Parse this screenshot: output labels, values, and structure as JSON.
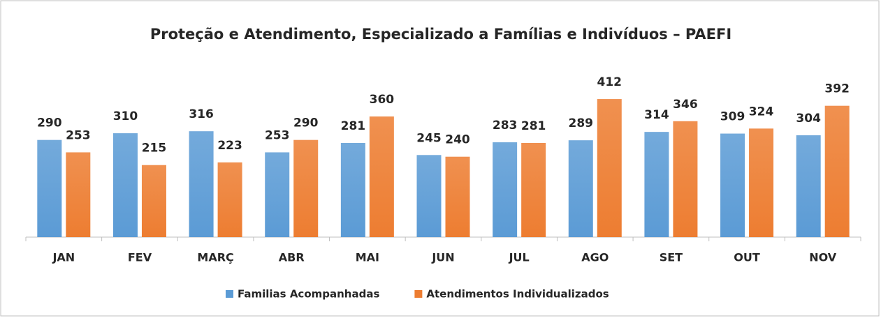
{
  "chart_data": {
    "type": "bar",
    "title": "Proteção e Atendimento, Especializado a Famílias e Indivíduos – PAEFI",
    "categories": [
      "JAN",
      "FEV",
      "MARÇ",
      "ABR",
      "MAI",
      "JUN",
      "JUL",
      "AGO",
      "SET",
      "OUT",
      "NOV"
    ],
    "series": [
      {
        "name": "Familias Acompanhadas",
        "color": "#5b9bd5",
        "values": [
          290,
          310,
          316,
          253,
          281,
          245,
          283,
          289,
          314,
          309,
          304
        ]
      },
      {
        "name": "Atendimentos Individualizados",
        "color": "#ed7d31",
        "values": [
          253,
          215,
          223,
          290,
          360,
          240,
          281,
          412,
          346,
          324,
          392
        ]
      }
    ],
    "ylim": [
      0,
      460
    ],
    "legend": "bottom"
  }
}
